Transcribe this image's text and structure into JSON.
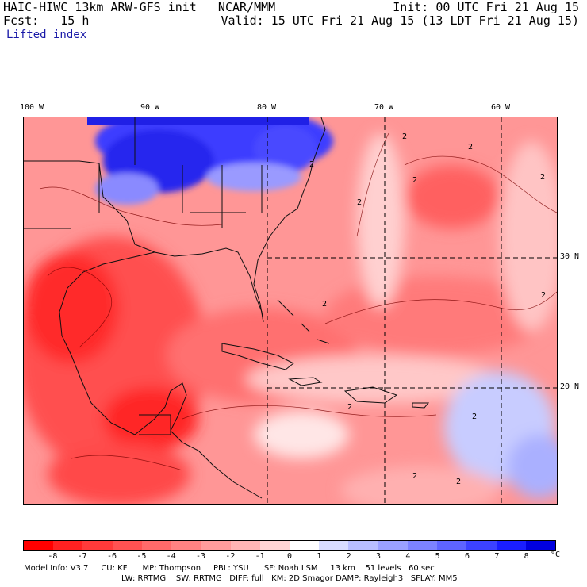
{
  "header": {
    "title": "HAIC-HIWC 13km ARW-GFS init   NCAR/MMM",
    "init": "Init: 00 UTC Fri 21 Aug 15",
    "fcst": "Fcst:   15 h",
    "valid": "Valid: 15 UTC Fri 21 Aug 15 (13 LDT Fri 21 Aug 15)",
    "field": "Lifted index"
  },
  "map": {
    "lon_labels": [
      "100 W",
      "90 W",
      "80 W",
      "70 W",
      "60 W"
    ],
    "lat_labels": [
      "30 N",
      "20 N"
    ],
    "contour_labels": [
      "2",
      "2",
      "2",
      "2",
      "2",
      "2",
      "2",
      "2",
      "2",
      "2",
      "2",
      "2"
    ]
  },
  "colorbar": {
    "ticks": [
      "-8",
      "-7",
      "-6",
      "-5",
      "-4",
      "-3",
      "-2",
      "-1",
      "0",
      "1",
      "2",
      "3",
      "4",
      "5",
      "6",
      "7",
      "8"
    ],
    "unit": "°C",
    "colors": [
      "#ff0000",
      "#ff2121",
      "#ff3a3a",
      "#ff5252",
      "#ff6a6a",
      "#ff8282",
      "#ff9c9c",
      "#ffb5b5",
      "#ffd4d4",
      "#ffffff",
      "#d8dcff",
      "#b8beff",
      "#9aa0ff",
      "#7c82ff",
      "#5e64ff",
      "#3c42ff",
      "#1a1eff",
      "#0000e0"
    ]
  },
  "footer": {
    "line1": "Model Info: V3.7     CU: KF      MP: Thompson     PBL: YSU      SF: Noah LSM     13 km    51 levels   60 sec",
    "line2": "LW: RRTMG    SW: RRTMG   DIFF: full   KM: 2D Smagor DAMP: Rayleigh3   SFLAY: MM5"
  }
}
